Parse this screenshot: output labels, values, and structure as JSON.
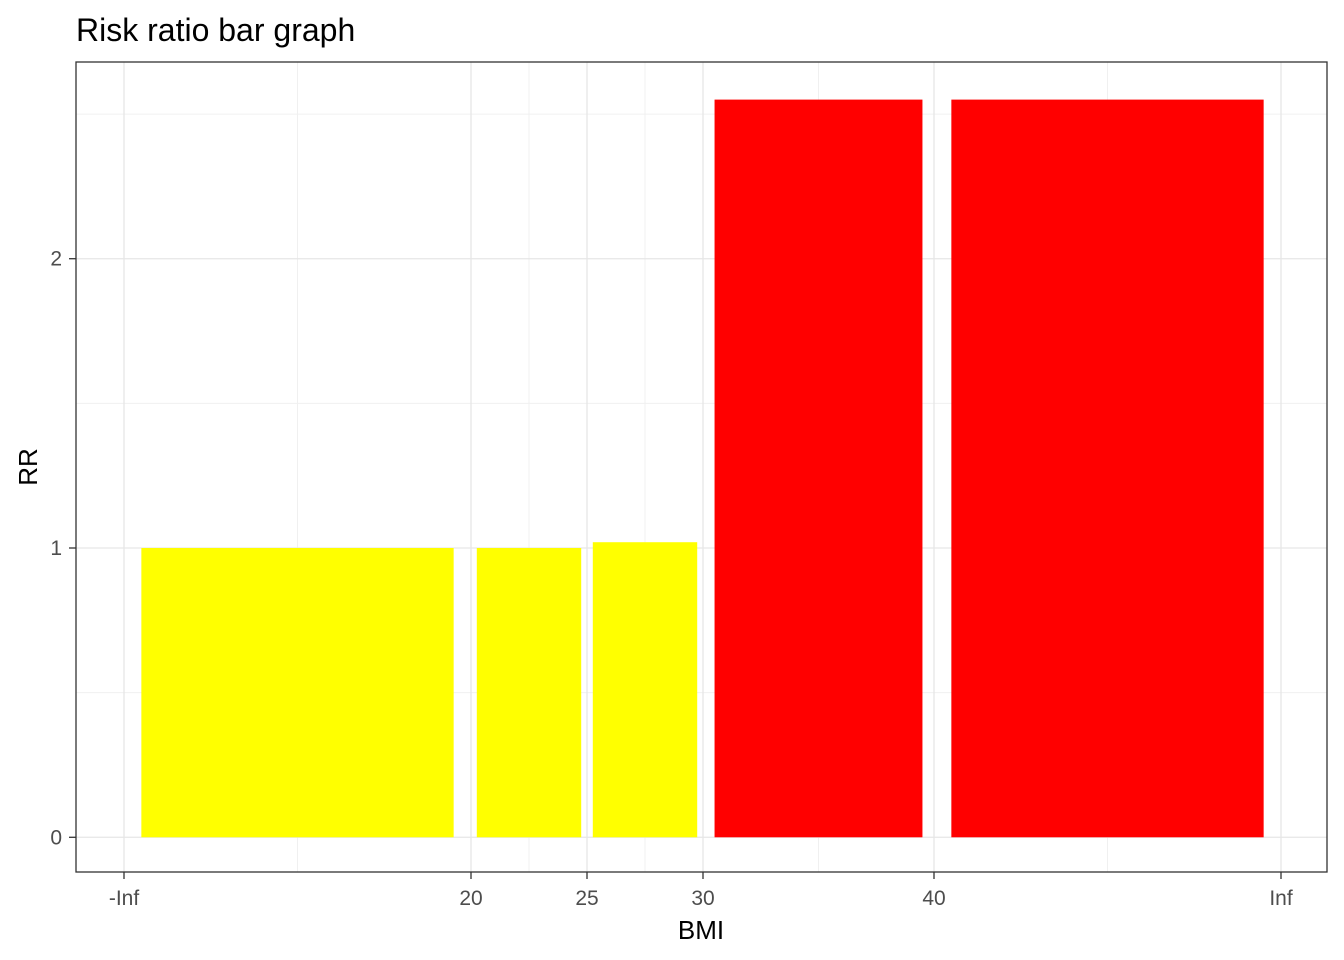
{
  "chart_data": {
    "type": "bar",
    "title": "Risk ratio bar graph",
    "xlabel": "BMI",
    "ylabel": "RR",
    "x_ticks": [
      "-Inf",
      "20",
      "25",
      "30",
      "40",
      "Inf"
    ],
    "y_ticks": [
      "0",
      "1",
      "2"
    ],
    "ylim": [
      -0.12,
      2.68
    ],
    "bins": [
      {
        "from": "-Inf",
        "to": "20",
        "value": 1.0,
        "color": "#ffff00"
      },
      {
        "from": "20",
        "to": "25",
        "value": 1.0,
        "color": "#ffff00"
      },
      {
        "from": "25",
        "to": "30",
        "value": 1.02,
        "color": "#ffff00"
      },
      {
        "from": "30",
        "to": "40",
        "value": 2.55,
        "color": "#ff0000"
      },
      {
        "from": "40",
        "to": "Inf",
        "value": 2.55,
        "color": "#ff0000"
      }
    ],
    "grid": true,
    "colors": {
      "low_risk": "#ffff00",
      "high_risk": "#ff0000"
    }
  }
}
